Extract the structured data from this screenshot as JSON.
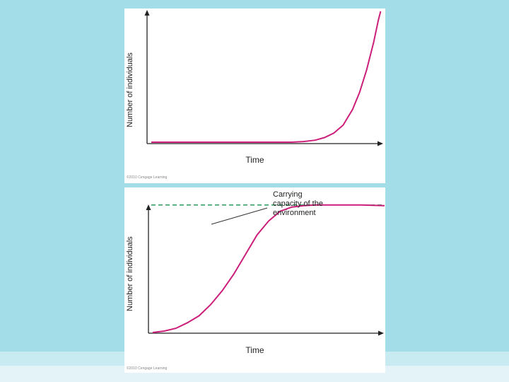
{
  "chart_data": [
    {
      "type": "line",
      "title": "",
      "xlabel": "Time",
      "ylabel": "Number of individuals",
      "x_ticks": [],
      "y_ticks": [],
      "xlim": [
        0,
        1
      ],
      "ylim": [
        0,
        1
      ],
      "grid": false,
      "legend": "none",
      "series": [
        {
          "color": "#cc1f7a",
          "x": [
            0,
            0.5,
            0.6,
            0.65,
            0.7,
            0.74,
            0.78,
            0.82,
            0.86,
            0.89,
            0.92,
            0.95,
            0.97,
            0.98
          ],
          "values": [
            0.0,
            0.0,
            0.0,
            0.005,
            0.015,
            0.035,
            0.07,
            0.13,
            0.25,
            0.38,
            0.55,
            0.76,
            0.93,
            1.0
          ]
        }
      ],
      "copyright": "©2010 Cengage Learning"
    },
    {
      "type": "line",
      "title": "",
      "xlabel": "Time",
      "ylabel": "Number of individuals",
      "x_ticks": [],
      "y_ticks": [],
      "xlim": [
        0,
        1
      ],
      "ylim": [
        0,
        1
      ],
      "grid": false,
      "legend": "none",
      "series": [
        {
          "color": "#cc1f7a",
          "x": [
            0,
            0.05,
            0.1,
            0.15,
            0.2,
            0.25,
            0.3,
            0.35,
            0.4,
            0.45,
            0.5,
            0.55,
            0.6,
            0.65,
            0.7,
            0.75,
            0.8,
            0.85,
            0.9,
            0.95,
            1.0
          ],
          "values": [
            0.0,
            0.01,
            0.03,
            0.07,
            0.12,
            0.2,
            0.3,
            0.42,
            0.56,
            0.7,
            0.8,
            0.87,
            0.9,
            0.91,
            0.915,
            0.915,
            0.915,
            0.915,
            0.915,
            0.912,
            0.91
          ]
        }
      ],
      "reference_line": {
        "y": 0.915,
        "color": "#2e9b5a",
        "style": "dashed"
      },
      "annotation": {
        "lines": [
          "Carrying",
          "capacity of the",
          "environment"
        ]
      },
      "copyright": "©2010 Cengage Learning"
    }
  ]
}
